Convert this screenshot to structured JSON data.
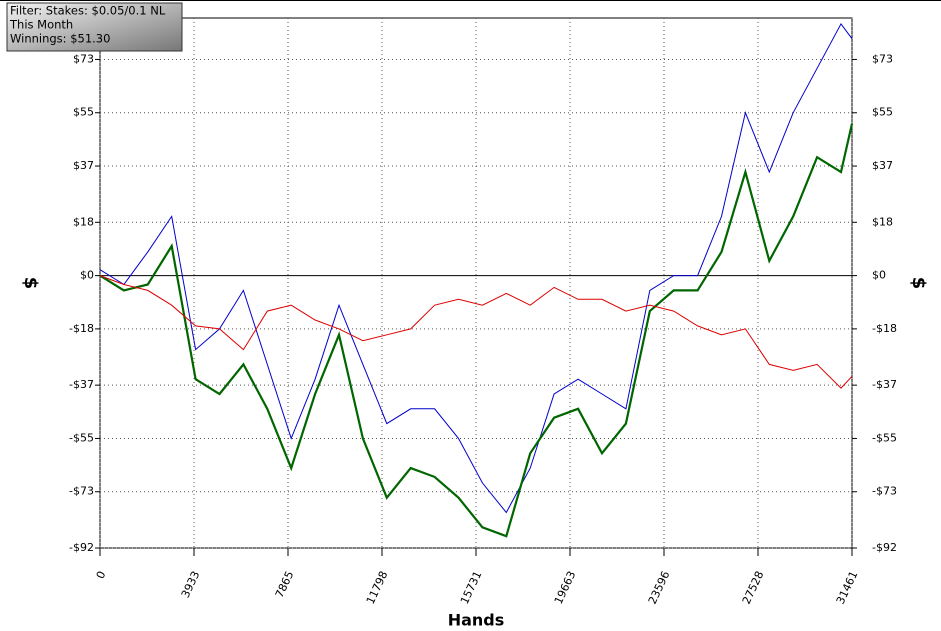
{
  "chart_data": {
    "type": "line",
    "x_label": "Hands",
    "y_label": "$",
    "info": [
      "Filter: Stakes: $0.05/0.1 NL",
      "This Month",
      "Winnings: $51.30"
    ],
    "x": [
      0,
      1000,
      2000,
      3000,
      4000,
      5000,
      6000,
      7000,
      8000,
      9000,
      10000,
      11000,
      12000,
      13000,
      14000,
      15000,
      16000,
      17000,
      18000,
      19000,
      20000,
      21000,
      22000,
      23000,
      24000,
      25000,
      26000,
      27000,
      28000,
      29000,
      30000,
      31000,
      31461
    ],
    "series": [
      {
        "color": "#0000cc",
        "width": 1,
        "values": [
          2,
          -3,
          8,
          20,
          -25,
          -18,
          -5,
          -30,
          -55,
          -35,
          -10,
          -30,
          -50,
          -45,
          -45,
          -55,
          -70,
          -80,
          -65,
          -40,
          -35,
          -40,
          -45,
          -5,
          0,
          0,
          20,
          55,
          35,
          55,
          70,
          85,
          80
        ]
      },
      {
        "color": "#006600",
        "width": 2.2,
        "values": [
          0,
          -5,
          -3,
          10,
          -35,
          -40,
          -30,
          -45,
          -65,
          -40,
          -20,
          -55,
          -75,
          -65,
          -68,
          -75,
          -85,
          -88,
          -60,
          -48,
          -45,
          -60,
          -50,
          -12,
          -5,
          -5,
          8,
          35,
          5,
          20,
          40,
          35,
          51.3
        ]
      },
      {
        "color": "#dd0000",
        "width": 1,
        "values": [
          0,
          -3,
          -5,
          -10,
          -17,
          -18,
          -25,
          -12,
          -10,
          -15,
          -18,
          -22,
          -20,
          -18,
          -10,
          -8,
          -10,
          -6,
          -10,
          -4,
          -8,
          -8,
          -12,
          -10,
          -12,
          -17,
          -20,
          -18,
          -30,
          -32,
          -30,
          -38,
          -34
        ]
      }
    ],
    "xlim": [
      0,
      31461
    ],
    "xticks": [
      0,
      3933,
      7865,
      11798,
      15731,
      19663,
      23596,
      27528,
      31461
    ],
    "ylim": [
      -92,
      87
    ],
    "yticks": [
      {
        "value": -92,
        "label": "-$92"
      },
      {
        "value": -73,
        "label": "-$73"
      },
      {
        "value": -55,
        "label": "-$55"
      },
      {
        "value": -37,
        "label": "-$37"
      },
      {
        "value": -18,
        "label": "-$18"
      },
      {
        "value": 0,
        "label": "$0"
      },
      {
        "value": 18,
        "label": "$18"
      },
      {
        "value": 37,
        "label": "$37"
      },
      {
        "value": 55,
        "label": "$55"
      },
      {
        "value": 73,
        "label": "$73"
      }
    ],
    "grid": true
  }
}
